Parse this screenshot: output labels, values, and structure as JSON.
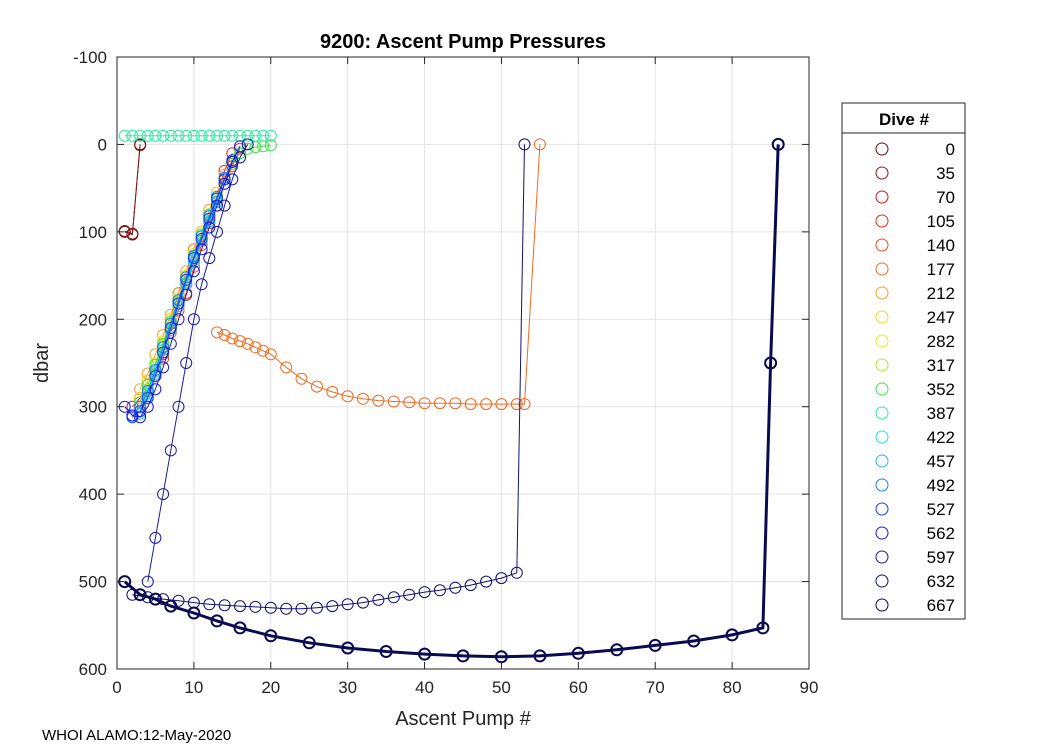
{
  "chart_data": {
    "type": "line",
    "title": "9200: Ascent Pump Pressures",
    "xlabel": "Ascent Pump #",
    "ylabel": "dbar",
    "xlim": [
      0,
      90
    ],
    "ylim": [
      -100,
      600
    ],
    "y_reversed": true,
    "xticks": [
      0,
      10,
      20,
      30,
      40,
      50,
      60,
      70,
      80,
      90
    ],
    "yticks": [
      -100,
      0,
      100,
      200,
      300,
      400,
      500,
      600
    ],
    "legend": {
      "title": "Dive #",
      "position": "outside-right",
      "entries": [
        {
          "label": "0",
          "color": "#5a0f0f"
        },
        {
          "label": "35",
          "color": "#8c1a1a"
        },
        {
          "label": "70",
          "color": "#d11a1a"
        },
        {
          "label": "105",
          "color": "#ee2a14"
        },
        {
          "label": "140",
          "color": "#f04a14"
        },
        {
          "label": "177",
          "color": "#f06a20"
        },
        {
          "label": "212",
          "color": "#f5a020"
        },
        {
          "label": "247",
          "color": "#f5d820"
        },
        {
          "label": "282",
          "color": "#e2ee1a"
        },
        {
          "label": "317",
          "color": "#a0ee2a"
        },
        {
          "label": "352",
          "color": "#40e050"
        },
        {
          "label": "387",
          "color": "#30e8a0"
        },
        {
          "label": "422",
          "color": "#20e0e0"
        },
        {
          "label": "457",
          "color": "#20b8f0"
        },
        {
          "label": "492",
          "color": "#1a80f0"
        },
        {
          "label": "527",
          "color": "#1a40f0"
        },
        {
          "label": "562",
          "color": "#1a1ae0"
        },
        {
          "label": "597",
          "color": "#1a1aa0"
        },
        {
          "label": "632",
          "color": "#121270"
        },
        {
          "label": "667",
          "color": "#0a0a50"
        }
      ]
    },
    "series": [
      {
        "name": "0",
        "color": "#5a0f0f",
        "x": [
          1,
          2,
          3
        ],
        "y": [
          100,
          103,
          0
        ]
      },
      {
        "name": "35",
        "color": "#8c1a1a",
        "x": [
          1,
          2,
          3
        ],
        "y": [
          99,
          102,
          1
        ]
      },
      {
        "name": "70",
        "color": "#d11a1a",
        "x": [
          2,
          3,
          4,
          5,
          6,
          7,
          8,
          9,
          10,
          11,
          12,
          13,
          14,
          15
        ],
        "y": [
          300,
          290,
          270,
          250,
          230,
          200,
          170,
          150,
          120,
          100,
          80,
          60,
          40,
          20
        ]
      },
      {
        "name": "105",
        "color": "#ee2a14",
        "x": [
          3,
          4,
          5,
          6,
          7,
          8,
          9,
          10,
          11,
          12,
          13,
          14,
          15
        ],
        "y": [
          290,
          280,
          260,
          240,
          210,
          180,
          160,
          130,
          110,
          80,
          60,
          30,
          10
        ]
      },
      {
        "name": "140",
        "color": "#f04a14",
        "x": [
          3,
          4,
          5,
          6,
          7,
          8,
          9,
          10,
          11,
          12,
          13,
          14,
          15,
          16
        ],
        "y": [
          300,
          285,
          265,
          245,
          215,
          190,
          170,
          140,
          115,
          90,
          70,
          45,
          25,
          5
        ]
      },
      {
        "name": "177",
        "color": "#f06a20",
        "x": [
          13,
          14,
          15,
          16,
          17,
          18,
          19,
          20,
          22,
          24,
          26,
          28,
          30,
          32,
          34,
          36,
          38,
          40,
          42,
          44,
          46,
          48,
          50,
          52,
          53,
          55
        ],
        "y": [
          215,
          218,
          222,
          225,
          228,
          232,
          236,
          240,
          255,
          268,
          277,
          283,
          288,
          291,
          293,
          294,
          295,
          296,
          296,
          296,
          297,
          297,
          297,
          297,
          297,
          0
        ]
      },
      {
        "name": "212",
        "color": "#f5a020",
        "x": [
          3,
          4,
          5,
          6,
          7,
          8,
          9,
          10,
          11,
          12,
          13,
          14
        ],
        "y": [
          280,
          262,
          240,
          218,
          195,
          170,
          145,
          120,
          100,
          75,
          55,
          35
        ]
      },
      {
        "name": "247",
        "color": "#f5d820",
        "x": [
          3,
          4,
          5,
          6,
          7,
          8,
          9,
          10,
          11,
          12,
          13
        ],
        "y": [
          290,
          270,
          250,
          225,
          200,
          175,
          150,
          125,
          100,
          80,
          55
        ]
      },
      {
        "name": "282",
        "color": "#e2ee1a",
        "x": [
          3,
          4,
          5,
          6,
          7,
          8,
          9,
          10,
          11,
          12,
          13
        ],
        "y": [
          295,
          275,
          250,
          230,
          205,
          178,
          150,
          128,
          105,
          80,
          60
        ]
      },
      {
        "name": "317",
        "color": "#a0ee2a",
        "x": [
          3,
          4,
          5,
          6,
          7,
          8,
          9,
          10,
          11,
          12,
          13
        ],
        "y": [
          300,
          280,
          255,
          232,
          208,
          180,
          155,
          130,
          108,
          82,
          62
        ]
      },
      {
        "name": "352",
        "color": "#40e050",
        "x": [
          3,
          4,
          5,
          6,
          7,
          8,
          9,
          10,
          11,
          12,
          13,
          14,
          15,
          16,
          17,
          18,
          19,
          20
        ],
        "y": [
          295,
          275,
          252,
          228,
          203,
          178,
          152,
          127,
          103,
          80,
          60,
          40,
          22,
          10,
          5,
          3,
          2,
          1
        ]
      },
      {
        "name": "387",
        "color": "#30e8a0",
        "x": [
          1,
          2,
          3,
          4,
          5,
          6,
          7,
          8,
          9,
          10,
          11,
          12,
          13,
          14,
          15,
          16,
          17,
          18,
          19,
          20
        ],
        "y": [
          -10,
          -10,
          -10,
          -10,
          -10,
          -10,
          -10,
          -10,
          -10,
          -10,
          -10,
          -10,
          -10,
          -10,
          -10,
          -10,
          -10,
          -10,
          -10,
          -10
        ]
      },
      {
        "name": "422",
        "color": "#20e0e0",
        "x": [
          3,
          4,
          5,
          6,
          7,
          8,
          9,
          10,
          11,
          12,
          13
        ],
        "y": [
          305,
          285,
          260,
          235,
          210,
          182,
          158,
          132,
          108,
          85,
          65
        ]
      },
      {
        "name": "457",
        "color": "#20b8f0",
        "x": [
          3,
          4,
          5,
          6,
          7,
          8,
          9,
          10,
          11,
          12,
          13,
          14
        ],
        "y": [
          308,
          288,
          263,
          238,
          212,
          185,
          160,
          135,
          110,
          88,
          66,
          45
        ]
      },
      {
        "name": "492",
        "color": "#1a80f0",
        "x": [
          2,
          3,
          4,
          5,
          6,
          7,
          8,
          9,
          10,
          11,
          12,
          13,
          14
        ],
        "y": [
          310,
          300,
          282,
          258,
          232,
          205,
          178,
          152,
          128,
          105,
          82,
          60,
          38
        ]
      },
      {
        "name": "527",
        "color": "#1a40f0",
        "x": [
          2,
          3,
          4,
          5,
          6,
          7,
          8,
          9,
          10,
          11,
          12,
          13,
          14,
          15
        ],
        "y": [
          312,
          305,
          290,
          265,
          238,
          210,
          182,
          155,
          130,
          108,
          85,
          62,
          40,
          18
        ]
      },
      {
        "name": "562",
        "color": "#1a1ae0",
        "x": [
          1,
          2,
          3,
          4,
          5,
          6,
          7,
          8,
          9,
          10,
          11,
          12,
          13,
          14,
          15,
          16
        ],
        "y": [
          300,
          310,
          312,
          300,
          280,
          255,
          228,
          200,
          172,
          145,
          120,
          95,
          70,
          45,
          20,
          2
        ]
      },
      {
        "name": "597",
        "color": "#1a1aa0",
        "x": [
          4,
          5,
          6,
          7,
          8,
          9,
          10,
          11,
          12,
          13,
          14,
          15,
          16,
          17
        ],
        "y": [
          500,
          450,
          400,
          350,
          300,
          250,
          200,
          160,
          130,
          100,
          70,
          40,
          15,
          0
        ]
      },
      {
        "name": "632",
        "color": "#121270",
        "x": [
          2,
          4,
          6,
          8,
          10,
          12,
          14,
          16,
          18,
          20,
          22,
          24,
          26,
          28,
          30,
          32,
          34,
          36,
          38,
          40,
          42,
          44,
          46,
          48,
          50,
          52,
          53
        ],
        "y": [
          515,
          518,
          520,
          522,
          524,
          526,
          527,
          528,
          529,
          530,
          531,
          531,
          530,
          528,
          526,
          524,
          521,
          518,
          515,
          512,
          510,
          507,
          504,
          500,
          496,
          490,
          0
        ]
      },
      {
        "name": "667",
        "color": "#0a0a50",
        "x": [
          1,
          3,
          5,
          7,
          10,
          13,
          16,
          20,
          25,
          30,
          35,
          40,
          45,
          50,
          55,
          60,
          65,
          70,
          75,
          80,
          84,
          85,
          86
        ],
        "y": [
          500,
          515,
          520,
          528,
          536,
          545,
          553,
          562,
          570,
          576,
          580,
          583,
          585,
          586,
          585,
          582,
          578,
          573,
          568,
          561,
          553,
          250,
          0
        ]
      }
    ]
  },
  "footer": {
    "text": "WHOI ALAMO:12-May-2020"
  }
}
